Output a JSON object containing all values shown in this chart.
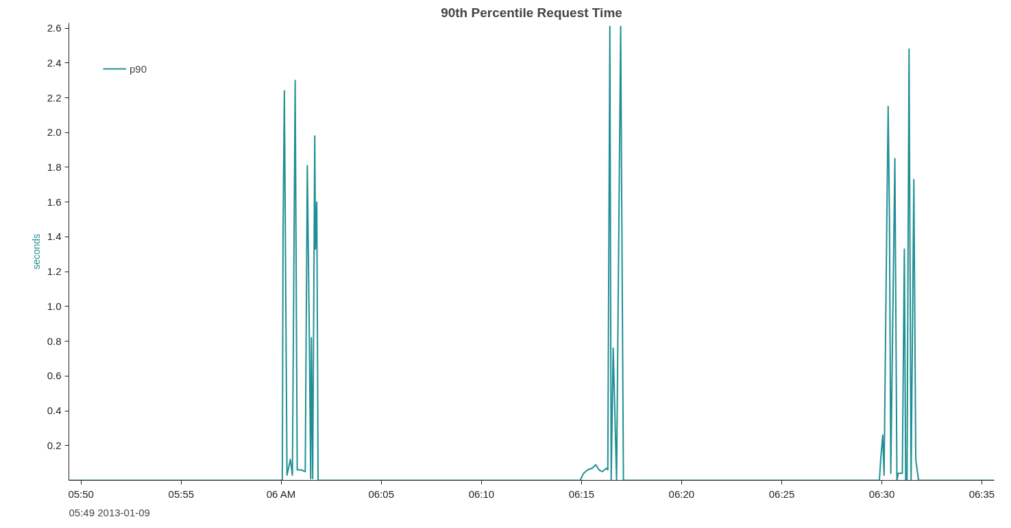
{
  "chart_data": {
    "type": "line",
    "title": "90th Percentile Request Time",
    "ylabel": "seconds",
    "annotations": [
      "05:49 2013-01-09"
    ],
    "xlim": [
      5.8232,
      6.5936
    ],
    "ylim": [
      0,
      2.63
    ],
    "xticks": [
      {
        "value": 5.8333,
        "label": "05:50"
      },
      {
        "value": 5.9167,
        "label": "05:55"
      },
      {
        "value": 6,
        "label": "06 AM"
      },
      {
        "value": 6.0833,
        "label": "06:05"
      },
      {
        "value": 6.1667,
        "label": "06:10"
      },
      {
        "value": 6.25,
        "label": "06:15"
      },
      {
        "value": 6.3333,
        "label": "06:20"
      },
      {
        "value": 6.4167,
        "label": "06:25"
      },
      {
        "value": 6.5,
        "label": "06:30"
      },
      {
        "value": 6.5833,
        "label": "06:35"
      }
    ],
    "yticks": [
      0.2,
      0.4,
      0.6,
      0.8,
      {
        "value": 1,
        "label": "1.0"
      },
      1.2,
      1.4,
      1.6,
      1.8,
      {
        "value": 2,
        "label": "2.0"
      },
      2.2,
      2.4,
      2.6
    ],
    "grid": false,
    "legend": "top left",
    "marker": "none",
    "line_style": "solid",
    "series": [
      {
        "name": "p90",
        "color": "#1f8f94",
        "x": [
          5.8232,
          6.0009,
          6.0015,
          6.0026,
          6.0048,
          6.0076,
          6.0093,
          6.0116,
          6.0133,
          6.0166,
          6.02,
          6.0217,
          6.0234,
          6.0245,
          6.0251,
          6.0262,
          6.0279,
          6.0285,
          6.0296,
          6.0307,
          6.2489,
          6.2517,
          6.2551,
          6.259,
          6.2618,
          6.2646,
          6.2674,
          6.2708,
          6.2719,
          6.2736,
          6.2747,
          6.2764,
          6.2792,
          6.2826,
          6.2849,
          6.498,
          6.4991,
          6.5008,
          6.5019,
          6.5042,
          6.5053,
          6.5064,
          6.5075,
          6.5109,
          6.5126,
          6.5137,
          6.5171,
          6.5188,
          6.5199,
          6.521,
          6.5227,
          6.5244,
          6.5267,
          6.5283,
          6.5306,
          6.5936
        ],
        "values": [
          0,
          0,
          1.4,
          2.24,
          0.03,
          0.12,
          0.03,
          2.3,
          0.06,
          0.06,
          0.05,
          1.81,
          0.82,
          0.01,
          0.82,
          0.01,
          1.98,
          1.33,
          1.6,
          0,
          0,
          0.04,
          0.06,
          0.07,
          0.09,
          0.06,
          0.05,
          0.07,
          0.06,
          2.61,
          0,
          0.76,
          0,
          2.61,
          0,
          0,
          0.12,
          0.26,
          0.03,
          1.5,
          2.15,
          1.5,
          0.04,
          1.85,
          0,
          0.04,
          0.04,
          1.33,
          0,
          0,
          2.48,
          0,
          1.73,
          0.12,
          0,
          0
        ]
      }
    ]
  }
}
